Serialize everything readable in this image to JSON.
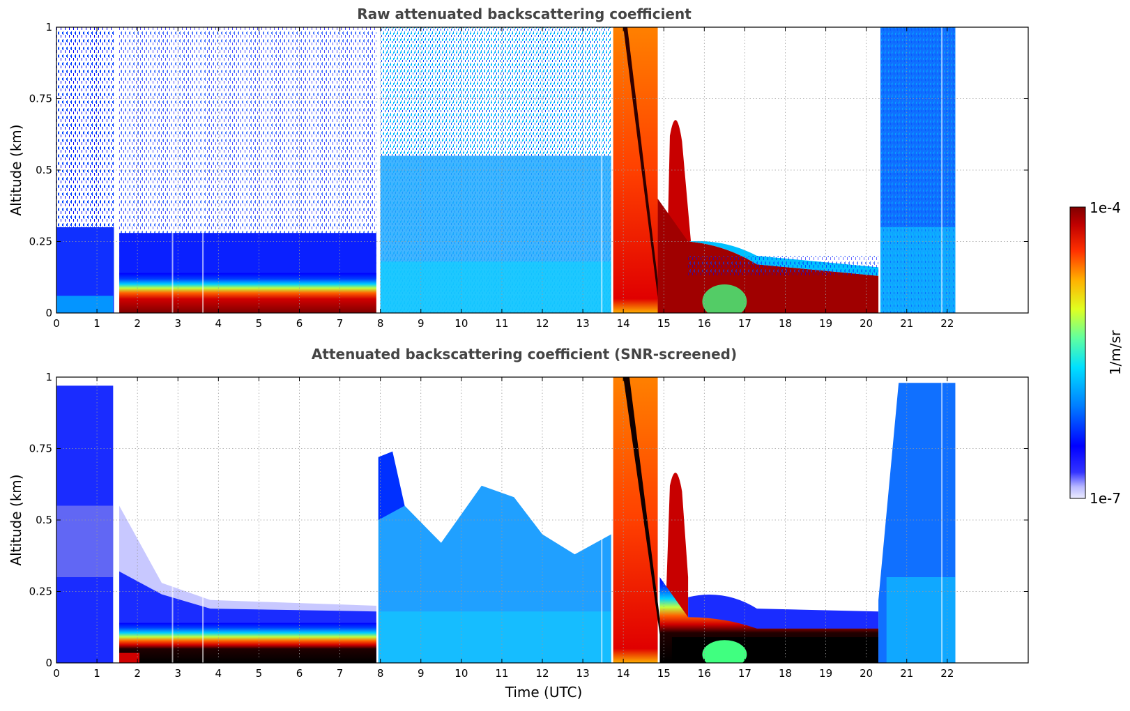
{
  "chart_data": [
    {
      "type": "heatmap",
      "title": "Raw attenuated backscattering coefficient",
      "xlabel": "",
      "ylabel": "Altitude (km)",
      "xlim": [
        0,
        24
      ],
      "ylim": [
        0,
        1
      ],
      "x_ticks": [
        "0",
        "1",
        "2",
        "3",
        "4",
        "5",
        "6",
        "7",
        "8",
        "9",
        "10",
        "11",
        "12",
        "13",
        "14",
        "15",
        "16",
        "17",
        "18",
        "19",
        "20",
        "21",
        "22"
      ],
      "y_ticks": [
        "0",
        "0.25",
        "0.5",
        "0.75",
        "1"
      ],
      "grid": true,
      "data_time_range": [
        0,
        22.2
      ],
      "data_gaps": [
        1.42,
        1.55
      ],
      "regions": [
        {
          "time": [
            0,
            7.9
          ],
          "alt": [
            0,
            0.07
          ],
          "level": "high",
          "note": "boundary layer aerosol, dark red"
        },
        {
          "time": [
            0,
            7.9
          ],
          "alt": [
            0.07,
            0.12
          ],
          "level": "moderate",
          "note": "yellow-green transition"
        },
        {
          "time": [
            8.0,
            13.7
          ],
          "alt": [
            0,
            1
          ],
          "level": "low",
          "note": "cyan/blue diffuse"
        },
        {
          "time": [
            13.8,
            14.8
          ],
          "alt": [
            0,
            1
          ],
          "level": "very high",
          "note": "cloud/precipitation, red"
        },
        {
          "time": [
            15.1,
            15.6
          ],
          "alt": [
            0,
            0.7
          ],
          "level": "very high",
          "note": "second red plume"
        },
        {
          "time": [
            15.6,
            20.4
          ],
          "alt": [
            0.05,
            0.2
          ],
          "level": "high",
          "note": "dark red layer descending"
        },
        {
          "time": [
            20.4,
            22.2
          ],
          "alt": [
            0,
            1
          ],
          "level": "low",
          "note": "blue/cyan"
        }
      ]
    },
    {
      "type": "heatmap",
      "title": "Attenuated backscattering coefficient (SNR-screened)",
      "xlabel": "Time (UTC)",
      "ylabel": "Altitude (km)",
      "xlim": [
        0,
        24
      ],
      "ylim": [
        0,
        1
      ],
      "x_ticks": [
        "0",
        "1",
        "2",
        "3",
        "4",
        "5",
        "6",
        "7",
        "8",
        "9",
        "10",
        "11",
        "12",
        "13",
        "14",
        "15",
        "16",
        "17",
        "18",
        "19",
        "20",
        "21",
        "22"
      ],
      "y_ticks": [
        "0",
        "0.25",
        "0.5",
        "0.75",
        "1"
      ],
      "grid": true,
      "data_time_range": [
        0,
        22.2
      ],
      "regions": [
        {
          "time": [
            0,
            1.4
          ],
          "alt": [
            0,
            1
          ],
          "level": "low",
          "note": "blue"
        },
        {
          "time": [
            2.0,
            7.9
          ],
          "alt": [
            0,
            0.07
          ],
          "level": "saturated",
          "note": "black"
        },
        {
          "time": [
            8.0,
            13.7
          ],
          "alt": [
            0,
            0.75
          ],
          "level": "low",
          "note": "cyan/blue"
        },
        {
          "time": [
            13.8,
            14.8
          ],
          "alt": [
            0,
            1
          ],
          "level": "very high",
          "note": "red"
        },
        {
          "time": [
            15.0,
            20.4
          ],
          "alt": [
            0.02,
            0.15
          ],
          "level": "saturated",
          "note": "black layer"
        },
        {
          "time": [
            20.3,
            22.2
          ],
          "alt": [
            0,
            1
          ],
          "level": "low",
          "note": "blue"
        }
      ]
    }
  ],
  "colorbar": {
    "label": "1/m/sr",
    "max_label": "1e-4",
    "min_label": "1e-7",
    "scale": "log",
    "colormap": "jet"
  }
}
